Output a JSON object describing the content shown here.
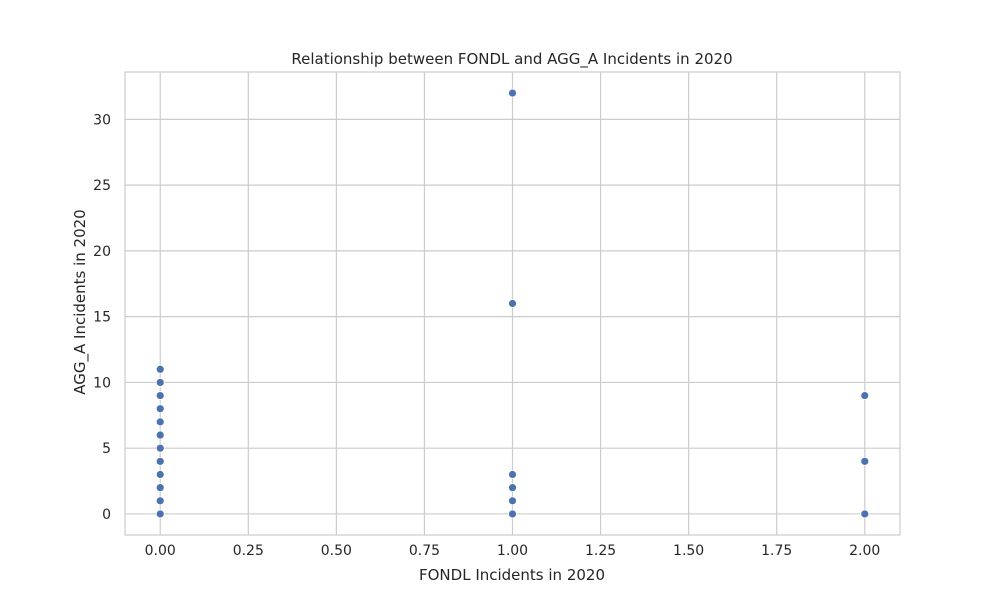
{
  "chart_data": {
    "type": "scatter",
    "title": "Relationship between FONDL and AGG_A Incidents in 2020",
    "xlabel": "FONDL Incidents in 2020",
    "ylabel": "AGG_A Incidents in 2020",
    "xlim": [
      -0.1,
      2.1
    ],
    "ylim": [
      -1.6,
      33.6
    ],
    "x_ticks": [
      0.0,
      0.25,
      0.5,
      0.75,
      1.0,
      1.25,
      1.5,
      1.75,
      2.0
    ],
    "x_tick_labels": [
      "0.00",
      "0.25",
      "0.50",
      "0.75",
      "1.00",
      "1.25",
      "1.50",
      "1.75",
      "2.00"
    ],
    "y_ticks": [
      0,
      5,
      10,
      15,
      20,
      25,
      30
    ],
    "y_tick_labels": [
      "0",
      "5",
      "10",
      "15",
      "20",
      "25",
      "30"
    ],
    "grid": true,
    "color": "#4c72b0",
    "points": [
      {
        "x": 0,
        "y": 0
      },
      {
        "x": 0,
        "y": 1
      },
      {
        "x": 0,
        "y": 2
      },
      {
        "x": 0,
        "y": 3
      },
      {
        "x": 0,
        "y": 4
      },
      {
        "x": 0,
        "y": 5
      },
      {
        "x": 0,
        "y": 6
      },
      {
        "x": 0,
        "y": 7
      },
      {
        "x": 0,
        "y": 8
      },
      {
        "x": 0,
        "y": 9
      },
      {
        "x": 0,
        "y": 10
      },
      {
        "x": 0,
        "y": 11
      },
      {
        "x": 1,
        "y": 0
      },
      {
        "x": 1,
        "y": 1
      },
      {
        "x": 1,
        "y": 2
      },
      {
        "x": 1,
        "y": 3
      },
      {
        "x": 1,
        "y": 16
      },
      {
        "x": 1,
        "y": 32
      },
      {
        "x": 2,
        "y": 0
      },
      {
        "x": 2,
        "y": 4
      },
      {
        "x": 2,
        "y": 9
      }
    ]
  }
}
